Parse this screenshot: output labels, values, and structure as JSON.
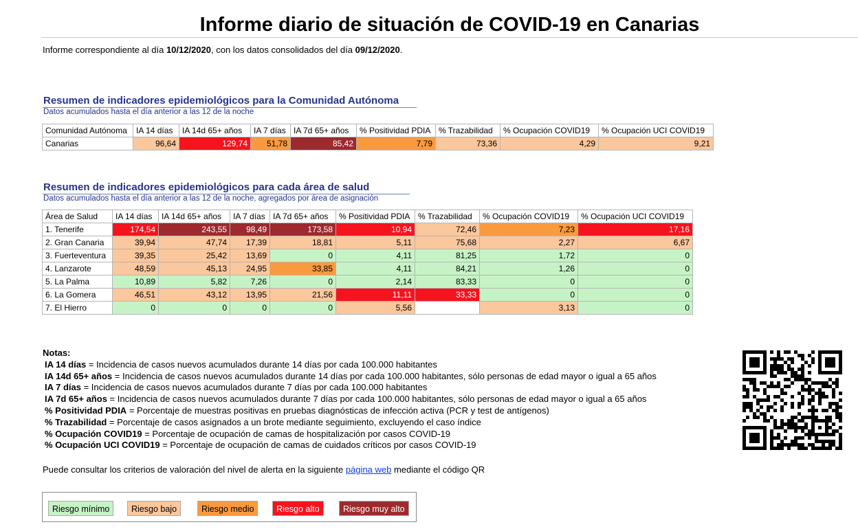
{
  "title": "Informe diario de situación de COVID-19 en Canarias",
  "intro": {
    "prefix": "Informe correspondiente al día ",
    "report_date": "10/12/2020",
    "middle": ", con los datos consolidados del día ",
    "data_date": "09/12/2020",
    "suffix": "."
  },
  "section_ca": {
    "title": "Resumen de indicadores epidemiológicos para la Comunidad Autónoma",
    "subtitle": "Datos acumulados hasta el día anterior a las 12 de la noche",
    "headers": [
      "Comunidad Autónoma",
      "IA 14 días",
      "IA 14d 65+ años",
      "IA 7 días",
      "IA 7d 65+ años",
      "% Positividad PDIA",
      "% Trazabilidad",
      "% Ocupación COVID19",
      "% Ocupación UCI COVID19"
    ],
    "rows": [
      {
        "name": "Canarias",
        "values": [
          "96,64",
          "129,74",
          "51,78",
          "85,42",
          "7,79",
          "73,36",
          "4,29",
          "9,21"
        ],
        "risk": [
          "bajo",
          "alto",
          "medio",
          "muy_alto",
          "medio",
          "bajo",
          "bajo",
          "bajo"
        ]
      }
    ]
  },
  "section_area": {
    "title": "Resumen de indicadores epidemiológicos para cada área de salud",
    "subtitle": "Datos acumulados hasta el día anterior a las 12 de la noche, agregados por área de asignación",
    "headers": [
      "Área de Salud",
      "IA 14 días",
      "IA 14d 65+ años",
      "IA 7 días",
      "IA 7d 65+ años",
      "% Positividad PDIA",
      "% Trazabilidad",
      "% Ocupación COVID19",
      "% Ocupación UCI COVID19"
    ],
    "rows": [
      {
        "name": "1. Tenerife",
        "values": [
          "174,54",
          "243,55",
          "98,49",
          "173,58",
          "10,94",
          "72,46",
          "7,23",
          "17,16"
        ],
        "risk": [
          "alto",
          "muy_alto",
          "muy_alto",
          "muy_alto",
          "alto",
          "bajo",
          "medio",
          "alto"
        ]
      },
      {
        "name": "2. Gran Canaria",
        "values": [
          "39,94",
          "47,74",
          "17,39",
          "18,81",
          "5,11",
          "75,68",
          "2,27",
          "6,67"
        ],
        "risk": [
          "bajo",
          "bajo",
          "bajo",
          "bajo",
          "bajo",
          "bajo",
          "bajo",
          "bajo"
        ]
      },
      {
        "name": "3. Fuerteventura",
        "values": [
          "39,35",
          "25,42",
          "13,69",
          "0",
          "4,11",
          "81,25",
          "1,72",
          "0"
        ],
        "risk": [
          "bajo",
          "bajo",
          "bajo",
          "minimo",
          "minimo",
          "minimo",
          "minimo",
          "minimo"
        ]
      },
      {
        "name": "4. Lanzarote",
        "values": [
          "48,59",
          "45,13",
          "24,95",
          "33,85",
          "4,11",
          "84,21",
          "1,26",
          "0"
        ],
        "risk": [
          "bajo",
          "bajo",
          "bajo",
          "medio",
          "minimo",
          "minimo",
          "minimo",
          "minimo"
        ]
      },
      {
        "name": "5. La Palma",
        "values": [
          "10,89",
          "5,82",
          "7,26",
          "0",
          "2,14",
          "83,33",
          "0",
          "0"
        ],
        "risk": [
          "minimo",
          "minimo",
          "minimo",
          "minimo",
          "minimo",
          "minimo",
          "minimo",
          "minimo"
        ]
      },
      {
        "name": "6. La Gomera",
        "values": [
          "46,51",
          "43,12",
          "13,95",
          "21,56",
          "11,11",
          "33,33",
          "0",
          "0"
        ],
        "risk": [
          "bajo",
          "bajo",
          "bajo",
          "bajo",
          "alto",
          "alto",
          "minimo",
          "minimo"
        ]
      },
      {
        "name": "7. El Hierro",
        "values": [
          "0",
          "0",
          "0",
          "0",
          "5,56",
          "",
          "3,13",
          "0"
        ],
        "risk": [
          "minimo",
          "minimo",
          "minimo",
          "minimo",
          "bajo",
          "none",
          "bajo",
          "minimo"
        ]
      }
    ]
  },
  "notes": {
    "title": "Notas:",
    "items": [
      {
        "term": "IA 14 días",
        "desc": " = Incidencia de casos nuevos acumulados durante 14 días por cada 100.000 habitantes"
      },
      {
        "term": "IA 14d 65+ años",
        "desc": " = Incidencia de casos nuevos acumulados durante 14 días por cada 100.000 habitantes, sólo personas de edad mayor o igual a 65 años"
      },
      {
        "term": "IA 7 días",
        "desc": " = Incidencia de casos nuevos acumulados durante 7 días por cada 100.000 habitantes"
      },
      {
        "term": "IA 7d 65+ años",
        "desc": " = Incidencia de casos nuevos acumulados durante 7 días por cada 100.000 habitantes, sólo personas de edad mayor o igual a 65 años"
      },
      {
        "term": "% Positividad PDIA",
        "desc": " = Porcentaje de muestras positivas en pruebas diagnósticas de infección activa (PCR y test de antígenos)"
      },
      {
        "term": "% Trazabilidad",
        "desc": " = Porcentaje de casos asignados a un brote mediante seguimiento, excluyendo el caso índice"
      },
      {
        "term": "% Ocupación COVID19",
        "desc": " = Porcentaje de ocupación de camas de hospitalización por casos COVID-19"
      },
      {
        "term": "% Ocupación UCI COVID19",
        "desc": " = Porcentaje de ocupación de camas de cuidados críticos por casos COVID-19"
      }
    ]
  },
  "alert_text": {
    "prefix": "Puede consultar los criterios de valoración del nivel de alerta en la siguiente ",
    "link": "página web",
    "suffix": " mediante el código QR"
  },
  "legend": [
    {
      "key": "minimo",
      "label": "Riesgo mínimo"
    },
    {
      "key": "bajo",
      "label": "Riesgo bajo"
    },
    {
      "key": "medio",
      "label": "Riesgo medio"
    },
    {
      "key": "alto",
      "label": "Riesgo alto"
    },
    {
      "key": "muy_alto",
      "label": "Riesgo muy alto"
    }
  ],
  "colors": {
    "minimo": "#c6f3c6",
    "bajo": "#fbc79d",
    "medio": "#f99a3e",
    "alto": "#f5141e",
    "muy_alto": "#9c2a2e",
    "none": "#ffffff",
    "heading": "#27348b",
    "link": "#0b3ef3"
  }
}
